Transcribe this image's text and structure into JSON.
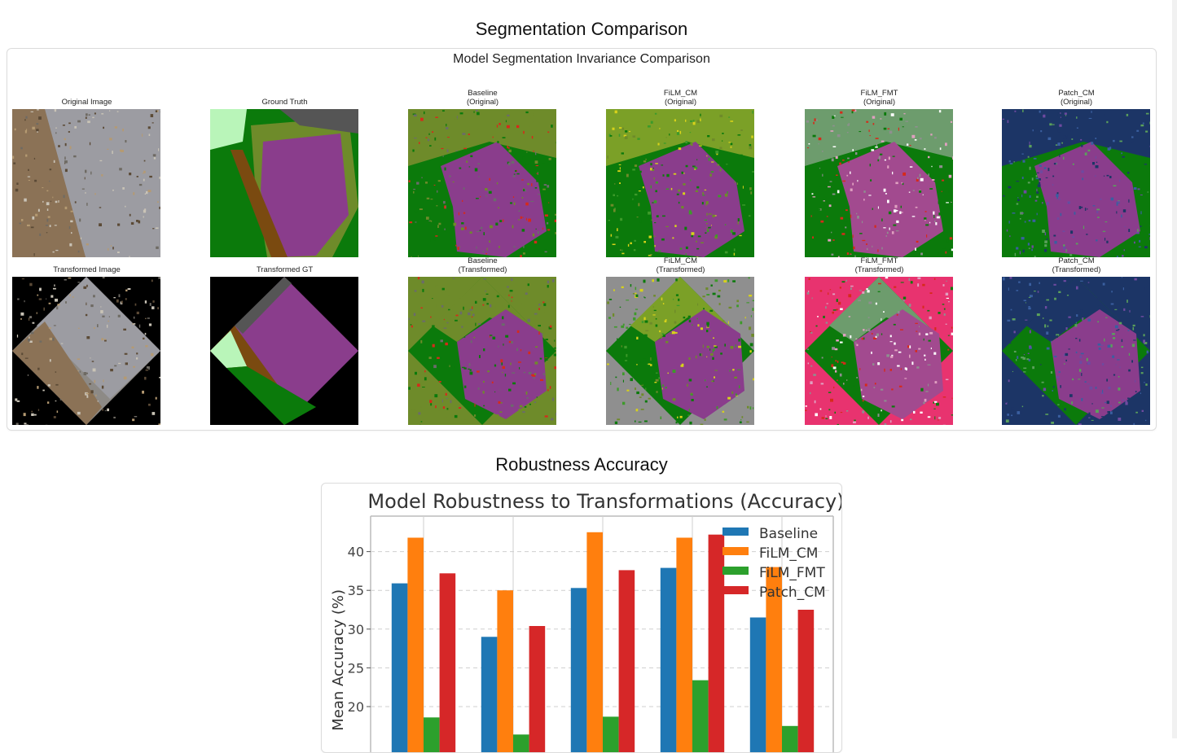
{
  "segmentation": {
    "section_title": "Segmentation Comparison",
    "figure_title": "Model Segmentation Invariance Comparison",
    "panels": [
      {
        "line1": "Original Image",
        "line2": ""
      },
      {
        "line1": "Ground Truth",
        "line2": ""
      },
      {
        "line1": "Baseline",
        "line2": "(Original)"
      },
      {
        "line1": "FiLM_CM",
        "line2": "(Original)"
      },
      {
        "line1": "FiLM_FMT",
        "line2": "(Original)"
      },
      {
        "line1": "Patch_CM",
        "line2": "(Original)"
      },
      {
        "line1": "Transformed Image",
        "line2": ""
      },
      {
        "line1": "Transformed GT",
        "line2": ""
      },
      {
        "line1": "Baseline",
        "line2": "(Transformed)"
      },
      {
        "line1": "FiLM_CM",
        "line2": "(Transformed)"
      },
      {
        "line1": "FiLM_FMT",
        "line2": "(Transformed)"
      },
      {
        "line1": "Patch_CM",
        "line2": "(Transformed)"
      }
    ],
    "colors": {
      "green": "#0b7a0b",
      "purple": "#8a3d8c",
      "olive": "#6e8b2a",
      "gray": "#8f8f8f",
      "pink": "#e8336f",
      "navy": "#1c3566",
      "brown": "#7a4a10",
      "lightgreen": "#b9f5b9",
      "teal": "#1a9a8a",
      "red": "#d62a1a"
    }
  },
  "robustness": {
    "section_title": "Robustness Accuracy",
    "chart_data": {
      "type": "bar",
      "title": "Model Robustness to Transformations (Accuracy)",
      "xlabel": "",
      "ylabel": "Mean Accuracy (%)",
      "categories": [
        "",
        "",
        "",
        "",
        ""
      ],
      "ylim": [
        0,
        44
      ],
      "yticks": [
        20,
        25,
        30,
        35,
        40
      ],
      "grid": true,
      "legend_position": "top-right",
      "series": [
        {
          "name": "Baseline",
          "color": "#1f77b4",
          "values": [
            35.9,
            29.0,
            35.3,
            37.9,
            31.5
          ]
        },
        {
          "name": "FiLM_CM",
          "color": "#ff7f0e",
          "values": [
            41.8,
            35.0,
            42.5,
            41.8,
            38.0
          ]
        },
        {
          "name": "FiLM_FMT",
          "color": "#2ca02c",
          "values": [
            18.6,
            16.4,
            18.7,
            23.4,
            17.5
          ]
        },
        {
          "name": "Patch_CM",
          "color": "#d62728",
          "values": [
            37.2,
            30.4,
            37.6,
            42.2,
            32.5
          ]
        }
      ]
    }
  }
}
